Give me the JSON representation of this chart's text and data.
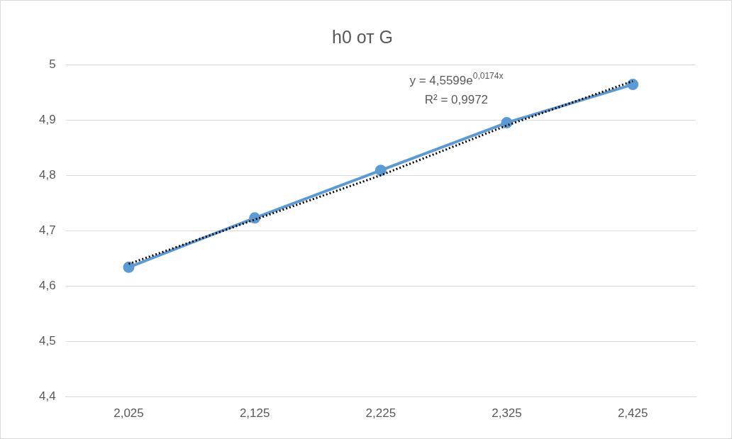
{
  "chart_data": {
    "type": "line",
    "title": "h0 от G",
    "categories": [
      "2,025",
      "2,125",
      "2,225",
      "2,325",
      "2,425"
    ],
    "series": [
      {
        "color": "#5b9bd5",
        "values": [
          4.634,
          4.723,
          4.809,
          4.895,
          4.964
        ],
        "marker": "circle",
        "line_style": "solid"
      },
      {
        "type": "line",
        "color": "#000000",
        "values": [
          4.64,
          4.72,
          4.8,
          4.89,
          4.97
        ],
        "marker": "none",
        "line_style": "dotted"
      }
    ],
    "ylim": [
      4.4,
      5
    ],
    "yticks": [
      {
        "value": 4.4,
        "label": "4,4"
      },
      {
        "value": 4.5,
        "label": "4,5"
      },
      {
        "value": 4.6,
        "label": "4,6"
      },
      {
        "value": 4.7,
        "label": "4,7"
      },
      {
        "value": 4.8,
        "label": "4,8"
      },
      {
        "value": 4.9,
        "label": "4,9"
      },
      {
        "value": 5,
        "label": "5"
      }
    ],
    "grid": "y",
    "legend": false,
    "annotations": [
      "y = 4,5599e$^{0,0174x}$",
      "R² = 0,9972"
    ]
  }
}
